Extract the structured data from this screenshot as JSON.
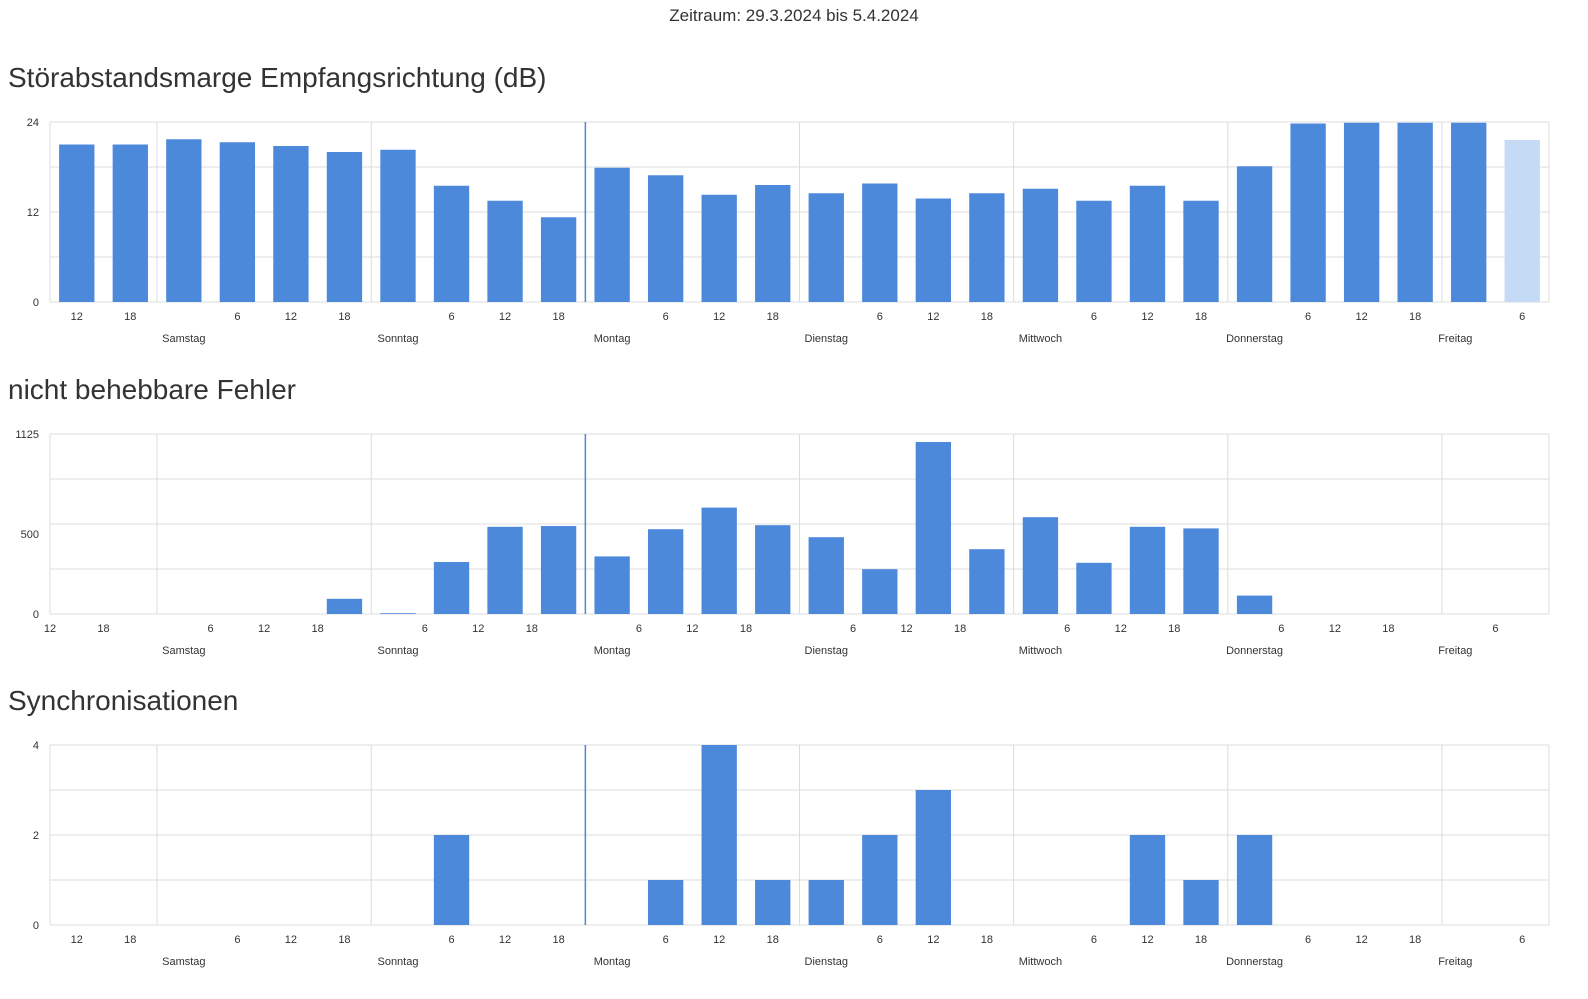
{
  "period": "Zeitraum: 29.3.2024 bis 5.4.2024",
  "colors": {
    "bar": "#4d89db",
    "bar_light": "#c4daf5",
    "grid": "#dcdcdc",
    "marker": "#4d89db",
    "axis_text": "#333333"
  },
  "chart_data": [
    {
      "type": "bar",
      "title": "Störabstandsmarge Empfangsrichtung (dB)",
      "ylim": [
        0,
        24
      ],
      "yticks": [
        "0",
        "12",
        "24"
      ],
      "ytick_values": [
        0,
        12,
        24
      ],
      "first_hour": 12,
      "bar_offset": 0.5,
      "xticks": [
        {
          "label": "12",
          "i": 0.5
        },
        {
          "label": "18",
          "i": 1.5
        },
        {
          "label": "6",
          "i": 3.5
        },
        {
          "label": "12",
          "i": 4.5
        },
        {
          "label": "18",
          "i": 5.5
        },
        {
          "label": "6",
          "i": 7.5
        },
        {
          "label": "12",
          "i": 8.5
        },
        {
          "label": "18",
          "i": 9.5
        },
        {
          "label": "6",
          "i": 11.5
        },
        {
          "label": "12",
          "i": 12.5
        },
        {
          "label": "18",
          "i": 13.5
        },
        {
          "label": "6",
          "i": 15.5
        },
        {
          "label": "12",
          "i": 16.5
        },
        {
          "label": "18",
          "i": 17.5
        },
        {
          "label": "6",
          "i": 19.5
        },
        {
          "label": "12",
          "i": 20.5
        },
        {
          "label": "18",
          "i": 21.5
        },
        {
          "label": "6",
          "i": 23.5
        },
        {
          "label": "12",
          "i": 24.5
        },
        {
          "label": "18",
          "i": 25.5
        },
        {
          "label": "6",
          "i": 27.5
        }
      ],
      "days": [
        {
          "label": "Samstag",
          "i": 2.5
        },
        {
          "label": "Sonntag",
          "i": 6.5
        },
        {
          "label": "Montag",
          "i": 10.5
        },
        {
          "label": "Dienstag",
          "i": 14.5
        },
        {
          "label": "Mittwoch",
          "i": 18.5
        },
        {
          "label": "Donnerstag",
          "i": 22.5
        },
        {
          "label": "Freitag",
          "i": 26.25
        }
      ],
      "day_lines": [
        2,
        6,
        10,
        14,
        18,
        22,
        26
      ],
      "marker_line": 10,
      "slots": 28,
      "values": [
        21.0,
        21.0,
        21.7,
        21.3,
        20.8,
        20.0,
        20.3,
        15.5,
        13.5,
        11.3,
        17.9,
        16.9,
        14.3,
        15.6,
        14.5,
        15.8,
        13.8,
        14.5,
        15.1,
        13.5,
        15.5,
        13.5,
        18.1,
        23.8,
        23.9,
        23.9,
        23.9,
        21.6
      ],
      "highlight_last": true
    },
    {
      "type": "bar",
      "title": "nicht behebbare Fehler",
      "ylim": [
        0,
        1125
      ],
      "yticks": [
        "0",
        "500",
        "1125"
      ],
      "ytick_values": [
        0,
        500,
        1125
      ],
      "first_hour": 12,
      "bar_offset": 0,
      "xticks": [
        {
          "label": "12",
          "i": 0
        },
        {
          "label": "18",
          "i": 1
        },
        {
          "label": "6",
          "i": 3
        },
        {
          "label": "12",
          "i": 4
        },
        {
          "label": "18",
          "i": 5
        },
        {
          "label": "6",
          "i": 7
        },
        {
          "label": "12",
          "i": 8
        },
        {
          "label": "18",
          "i": 9
        },
        {
          "label": "6",
          "i": 11
        },
        {
          "label": "12",
          "i": 12
        },
        {
          "label": "18",
          "i": 13
        },
        {
          "label": "6",
          "i": 15
        },
        {
          "label": "12",
          "i": 16
        },
        {
          "label": "18",
          "i": 17
        },
        {
          "label": "6",
          "i": 19
        },
        {
          "label": "12",
          "i": 20
        },
        {
          "label": "18",
          "i": 21
        },
        {
          "label": "6",
          "i": 23
        },
        {
          "label": "12",
          "i": 24
        },
        {
          "label": "18",
          "i": 25
        },
        {
          "label": "6",
          "i": 27
        }
      ],
      "days": [
        {
          "label": "Samstag",
          "i": 2.5
        },
        {
          "label": "Sonntag",
          "i": 6.5
        },
        {
          "label": "Montag",
          "i": 10.5
        },
        {
          "label": "Dienstag",
          "i": 14.5
        },
        {
          "label": "Mittwoch",
          "i": 18.5
        },
        {
          "label": "Donnerstag",
          "i": 22.5
        },
        {
          "label": "Freitag",
          "i": 26.25
        }
      ],
      "day_lines": [
        2,
        6,
        10,
        14,
        18,
        22,
        26
      ],
      "marker_line": 10,
      "slots": 28,
      "values": [
        0,
        0,
        0,
        0,
        0,
        95,
        5,
        325,
        545,
        550,
        360,
        530,
        665,
        555,
        480,
        280,
        1075,
        405,
        605,
        320,
        545,
        535,
        115,
        0,
        0,
        0,
        0,
        0
      ],
      "highlight_last": false
    },
    {
      "type": "bar",
      "title": "Synchronisationen",
      "ylim": [
        0,
        4
      ],
      "yticks": [
        "0",
        "2",
        "4"
      ],
      "ytick_values": [
        0,
        2,
        4
      ],
      "first_hour": 12,
      "bar_offset": 0.5,
      "xticks": [
        {
          "label": "12",
          "i": 0.5
        },
        {
          "label": "18",
          "i": 1.5
        },
        {
          "label": "6",
          "i": 3.5
        },
        {
          "label": "12",
          "i": 4.5
        },
        {
          "label": "18",
          "i": 5.5
        },
        {
          "label": "6",
          "i": 7.5
        },
        {
          "label": "12",
          "i": 8.5
        },
        {
          "label": "18",
          "i": 9.5
        },
        {
          "label": "6",
          "i": 11.5
        },
        {
          "label": "12",
          "i": 12.5
        },
        {
          "label": "18",
          "i": 13.5
        },
        {
          "label": "6",
          "i": 15.5
        },
        {
          "label": "12",
          "i": 16.5
        },
        {
          "label": "18",
          "i": 17.5
        },
        {
          "label": "6",
          "i": 19.5
        },
        {
          "label": "12",
          "i": 20.5
        },
        {
          "label": "18",
          "i": 21.5
        },
        {
          "label": "6",
          "i": 23.5
        },
        {
          "label": "12",
          "i": 24.5
        },
        {
          "label": "18",
          "i": 25.5
        },
        {
          "label": "6",
          "i": 27.5
        }
      ],
      "days": [
        {
          "label": "Samstag",
          "i": 2.5
        },
        {
          "label": "Sonntag",
          "i": 6.5
        },
        {
          "label": "Montag",
          "i": 10.5
        },
        {
          "label": "Dienstag",
          "i": 14.5
        },
        {
          "label": "Mittwoch",
          "i": 18.5
        },
        {
          "label": "Donnerstag",
          "i": 22.5
        },
        {
          "label": "Freitag",
          "i": 26.25
        }
      ],
      "day_lines": [
        2,
        6,
        10,
        14,
        18,
        22,
        26
      ],
      "marker_line": 10,
      "slots": 28,
      "values": [
        0,
        0,
        0,
        0,
        0,
        0,
        0,
        2,
        0,
        0,
        0,
        1,
        4,
        1,
        1,
        2,
        3,
        0,
        0,
        0,
        2,
        1,
        2,
        0,
        0,
        0,
        0,
        0
      ],
      "highlight_last": false
    }
  ]
}
